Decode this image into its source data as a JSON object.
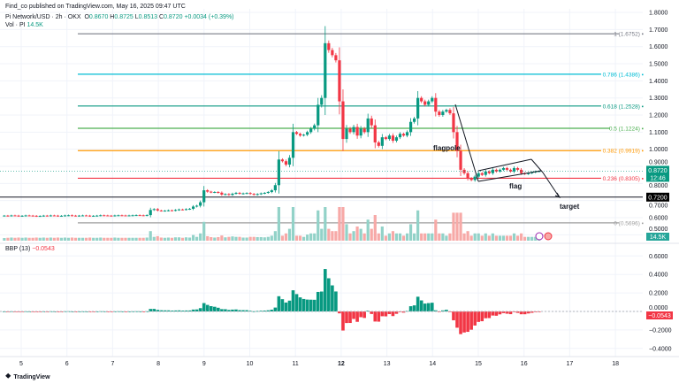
{
  "header": {
    "published": "Find_co published on TradingView.com, May 16, 2025 09:47 UTC",
    "symbol": "Pi Network/USD · 2h · OKX",
    "o_label": "O",
    "o": "0.8670",
    "h_label": "H",
    "h": "0.8725",
    "l_label": "L",
    "l": "0.8513",
    "c_label": "C",
    "c": "0.8720",
    "change": "+0.0034 (+0.39%)",
    "vol_label": "Vol · PI",
    "vol": "14.5K"
  },
  "footer": {
    "brand": "TradingView"
  },
  "colors": {
    "up": "#089981",
    "down": "#f23645",
    "vol_up": "#92d2c8",
    "vol_down": "#f7a9a7"
  },
  "chart_data": [
    {
      "type": "candlestick",
      "x_start_day": 4.63,
      "x_end_day": 16.33,
      "x_ticks": [
        "5",
        "6",
        "7",
        "8",
        "9",
        "10",
        "11",
        "12",
        "13",
        "14",
        "15",
        "16",
        "17",
        "18"
      ],
      "ylim": [
        0.5,
        1.8
      ],
      "y_ticks": [
        "1.8000",
        "1.7000",
        "1.6000",
        "1.5000",
        "1.4000",
        "1.3000",
        "1.2000",
        "1.1000",
        "1.0000",
        "0.9000",
        "0.8000",
        "0.7000",
        "0.6000",
        "0.5000"
      ],
      "closes": [
        0.612,
        0.611,
        0.613,
        0.612,
        0.61,
        0.611,
        0.613,
        0.612,
        0.611,
        0.609,
        0.61,
        0.612,
        0.611,
        0.613,
        0.612,
        0.61,
        0.611,
        0.613,
        0.614,
        0.612,
        0.611,
        0.612,
        0.613,
        0.612,
        0.61,
        0.611,
        0.612,
        0.614,
        0.613,
        0.612,
        0.611,
        0.613,
        0.614,
        0.613,
        0.612,
        0.613,
        0.614,
        0.615,
        0.614,
        0.613,
        0.615,
        0.645,
        0.65,
        0.642,
        0.64,
        0.641,
        0.643,
        0.642,
        0.645,
        0.648,
        0.647,
        0.65,
        0.652,
        0.665,
        0.67,
        0.69,
        0.76,
        0.752,
        0.748,
        0.75,
        0.746,
        0.735,
        0.738,
        0.733,
        0.74,
        0.745,
        0.74,
        0.742,
        0.744,
        0.739,
        0.734,
        0.738,
        0.742,
        0.745,
        0.75,
        0.76,
        0.79,
        0.94,
        0.93,
        0.91,
        0.95,
        1.1,
        1.09,
        1.08,
        1.085,
        1.1,
        1.12,
        1.14,
        1.26,
        1.3,
        1.62,
        1.58,
        1.55,
        1.52,
        1.28,
        1.06,
        1.12,
        1.1,
        1.13,
        1.08,
        1.12,
        1.1,
        1.18,
        1.14,
        1.04,
        1.02,
        1.07,
        1.06,
        1.08,
        1.05,
        1.07,
        1.09,
        1.08,
        1.1,
        1.16,
        1.18,
        1.3,
        1.28,
        1.26,
        1.28,
        1.3,
        1.22,
        1.2,
        1.22,
        1.23,
        1.21,
        1.1,
        0.99,
        0.88,
        0.86,
        0.83,
        0.82,
        0.84,
        0.86,
        0.85,
        0.87,
        0.86,
        0.88,
        0.87,
        0.88,
        0.89,
        0.88,
        0.87,
        0.89,
        0.88,
        0.86,
        0.855,
        0.86,
        0.865,
        0.87,
        0.872
      ],
      "fib_levels": [
        {
          "label": "1 (1.6752)",
          "price": 1.6752,
          "color": "#787b86"
        },
        {
          "label": "0.786 (1.4386)",
          "price": 1.4386,
          "color": "#00bcd4"
        },
        {
          "label": "0.618 (1.2528)",
          "price": 1.2528,
          "color": "#089981"
        },
        {
          "label": "0.5 (1.1224)",
          "price": 1.1224,
          "color": "#4caf50"
        },
        {
          "label": "0.382 (0.9919)",
          "price": 0.9919,
          "color": "#ff9800"
        },
        {
          "label": "0.236 (0.8305)",
          "price": 0.8305,
          "color": "#f23645"
        },
        {
          "label": "0 (0.5696)",
          "price": 0.5696,
          "color": "#9e9e9e"
        }
      ],
      "horizontal_line": {
        "price": 0.72,
        "label": "0.7200"
      },
      "last_price": {
        "value": "0.8720",
        "countdown": "12:46",
        "price": 0.872
      },
      "volume_label": "14.5K",
      "annotations": {
        "flagpole": "flagpole",
        "flag": "flag",
        "target": "target"
      }
    },
    {
      "type": "histogram",
      "title": "BBP (13)",
      "value": "−0.0543",
      "ylim": [
        -0.45,
        0.7
      ],
      "y_ticks": [
        "0.6000",
        "0.4000",
        "0.2000",
        "0.0000",
        "−0.2000",
        "−0.4000"
      ]
    }
  ]
}
